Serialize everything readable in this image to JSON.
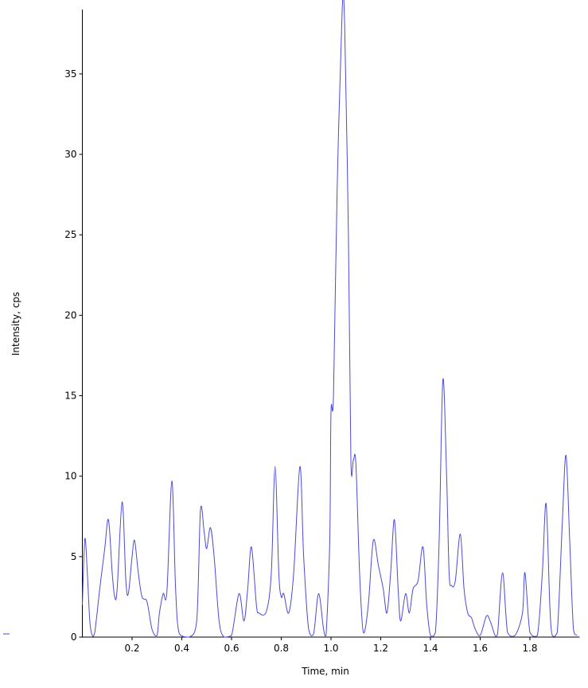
{
  "chart_data": {
    "type": "line",
    "xlabel": "Time, min",
    "ylabel": "Intensity, cps",
    "xlim": [
      0,
      2.0
    ],
    "ylim": [
      0,
      39
    ],
    "xticks": [
      0.2,
      0.4,
      0.6,
      0.8,
      {
        "value": 1,
        "label": "1.0"
      },
      1.2,
      1.4,
      1.6,
      1.8
    ],
    "yticks": [
      0,
      5,
      10,
      15,
      20,
      25,
      30,
      35
    ],
    "series": [
      {
        "color": "#4a4ad8",
        "x": [
          0,
          0.01,
          0.02,
          0.03,
          0.04,
          0.05,
          0.07,
          0.09,
          0.105,
          0.12,
          0.13,
          0.14,
          0.16,
          0.175,
          0.185,
          0.2,
          0.21,
          0.225,
          0.24,
          0.26,
          0.28,
          0.3,
          0.31,
          0.325,
          0.34,
          0.36,
          0.375,
          0.39,
          0.43,
          0.46,
          0.475,
          0.49,
          0.5,
          0.515,
          0.53,
          0.55,
          0.57,
          0.6,
          0.63,
          0.65,
          0.665,
          0.68,
          0.7,
          0.71,
          0.74,
          0.76,
          0.775,
          0.79,
          0.8,
          0.81,
          0.83,
          0.85,
          0.875,
          0.89,
          0.91,
          0.93,
          0.95,
          0.97,
          0.98,
          0.995,
          1.0,
          1.01,
          1.025,
          1.045,
          1.055,
          1.07,
          1.08,
          1.09,
          1.1,
          1.115,
          1.13,
          1.15,
          1.17,
          1.19,
          1.21,
          1.225,
          1.24,
          1.255,
          1.27,
          1.28,
          1.3,
          1.315,
          1.33,
          1.35,
          1.37,
          1.385,
          1.4,
          1.42,
          1.435,
          1.45,
          1.465,
          1.475,
          1.485,
          1.5,
          1.52,
          1.535,
          1.55,
          1.565,
          1.58,
          1.6,
          1.625,
          1.64,
          1.66,
          1.67,
          1.69,
          1.71,
          1.74,
          1.77,
          1.78,
          1.8,
          1.83,
          1.85,
          1.865,
          1.88,
          1.89,
          1.91,
          1.93,
          1.945,
          1.96,
          1.975,
          1.99
        ],
        "values": [
          2.0,
          6.1,
          4,
          1,
          0.1,
          0.3,
          3,
          5.5,
          7.3,
          4,
          2.5,
          3,
          8.4,
          3.5,
          2.7,
          5,
          6,
          4,
          2.5,
          2.2,
          0.5,
          0.1,
          1.5,
          2.7,
          2.8,
          9.7,
          3,
          0.2,
          0,
          1,
          7.9,
          6.5,
          5.5,
          6.8,
          5,
          1,
          0,
          0.1,
          2.7,
          1,
          3,
          5.6,
          2,
          1.5,
          1.6,
          4,
          10.6,
          4,
          2.5,
          2.7,
          1.5,
          4,
          10.6,
          5,
          0.5,
          0.2,
          2.7,
          0.5,
          0.1,
          6,
          14,
          15,
          28,
          39,
          38,
          25,
          11,
          11,
          10.8,
          4,
          0.3,
          2,
          6,
          4.5,
          3,
          1.5,
          4,
          7.3,
          3,
          1,
          2.7,
          1.5,
          3,
          3.5,
          5.6,
          2,
          0.1,
          0.3,
          6,
          16,
          10,
          4,
          3.2,
          3.5,
          6.4,
          3,
          1.5,
          1.2,
          0.5,
          0.1,
          1.3,
          1,
          0.1,
          0.2,
          4,
          0.3,
          0.1,
          1.5,
          4,
          0.3,
          0.1,
          4,
          8.3,
          2,
          0.1,
          0.3,
          7,
          11.3,
          6,
          0.5,
          0.1
        ]
      }
    ]
  }
}
